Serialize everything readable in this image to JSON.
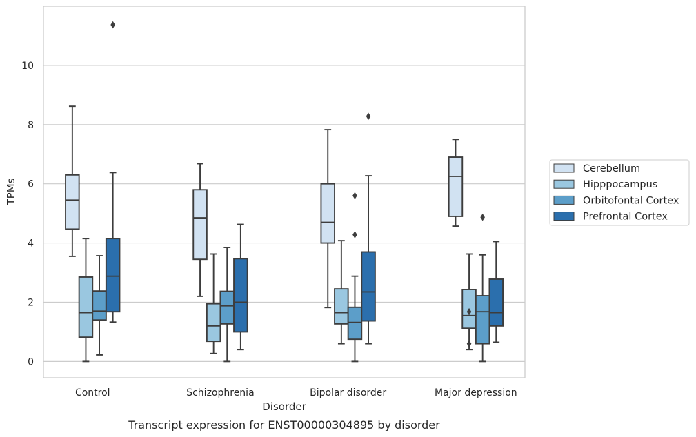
{
  "caption": "Transcript expression for ENST00000304895 by disorder",
  "chart_data": {
    "type": "box",
    "xlabel": "Disorder",
    "ylabel": "TPMs",
    "ylim": [
      -0.55,
      12.0
    ],
    "yticks": [
      0,
      2,
      4,
      6,
      8,
      10
    ],
    "grid": "horizontal",
    "legend_position": "right",
    "categories": [
      "Control",
      "Schizophrenia",
      "Bipolar disorder",
      "Major depression"
    ],
    "series": [
      {
        "name": "Cerebellum",
        "color": "#d1e2f2",
        "boxes": [
          {
            "whislo": 3.55,
            "q1": 4.47,
            "med": 5.45,
            "q3": 6.3,
            "whishi": 8.62,
            "fliers": []
          },
          {
            "whislo": 2.2,
            "q1": 3.45,
            "med": 4.85,
            "q3": 5.8,
            "whishi": 6.68,
            "fliers": []
          },
          {
            "whislo": 1.82,
            "q1": 4.0,
            "med": 4.7,
            "q3": 6.0,
            "whishi": 7.83,
            "fliers": []
          },
          {
            "whislo": 4.57,
            "q1": 4.9,
            "med": 6.25,
            "q3": 6.9,
            "whishi": 7.5,
            "fliers": []
          }
        ]
      },
      {
        "name": "Hipppocampus",
        "color": "#9ac7e0",
        "boxes": [
          {
            "whislo": 0.0,
            "q1": 0.82,
            "med": 1.65,
            "q3": 2.85,
            "whishi": 4.15,
            "fliers": []
          },
          {
            "whislo": 0.27,
            "q1": 0.68,
            "med": 1.2,
            "q3": 1.95,
            "whishi": 3.63,
            "fliers": []
          },
          {
            "whislo": 0.6,
            "q1": 1.27,
            "med": 1.65,
            "q3": 2.45,
            "whishi": 4.08,
            "fliers": []
          },
          {
            "whislo": 0.4,
            "q1": 1.12,
            "med": 1.55,
            "q3": 2.43,
            "whishi": 3.63,
            "fliers": [
              1.68,
              0.6
            ]
          }
        ]
      },
      {
        "name": "Orbitofontal Cortex",
        "color": "#5c9ec9",
        "boxes": [
          {
            "whislo": 0.22,
            "q1": 1.4,
            "med": 1.7,
            "q3": 2.38,
            "whishi": 3.57,
            "fliers": []
          },
          {
            "whislo": 0.0,
            "q1": 1.27,
            "med": 1.88,
            "q3": 2.37,
            "whishi": 3.85,
            "fliers": []
          },
          {
            "whislo": 0.0,
            "q1": 0.75,
            "med": 1.32,
            "q3": 1.83,
            "whishi": 2.88,
            "fliers": [
              5.6,
              4.28
            ]
          },
          {
            "whislo": 0.0,
            "q1": 0.6,
            "med": 1.68,
            "q3": 2.22,
            "whishi": 3.6,
            "fliers": [
              4.87
            ]
          }
        ]
      },
      {
        "name": "Prefrontal Cortex",
        "color": "#2b6fad",
        "boxes": [
          {
            "whislo": 1.33,
            "q1": 1.68,
            "med": 2.88,
            "q3": 4.15,
            "whishi": 6.38,
            "fliers": [
              11.37
            ]
          },
          {
            "whislo": 0.4,
            "q1": 1.0,
            "med": 2.0,
            "q3": 3.47,
            "whishi": 4.63,
            "fliers": []
          },
          {
            "whislo": 0.6,
            "q1": 1.37,
            "med": 2.35,
            "q3": 3.7,
            "whishi": 6.27,
            "fliers": [
              8.28
            ]
          },
          {
            "whislo": 0.65,
            "q1": 1.2,
            "med": 1.65,
            "q3": 2.78,
            "whishi": 4.05,
            "fliers": []
          }
        ]
      }
    ]
  }
}
